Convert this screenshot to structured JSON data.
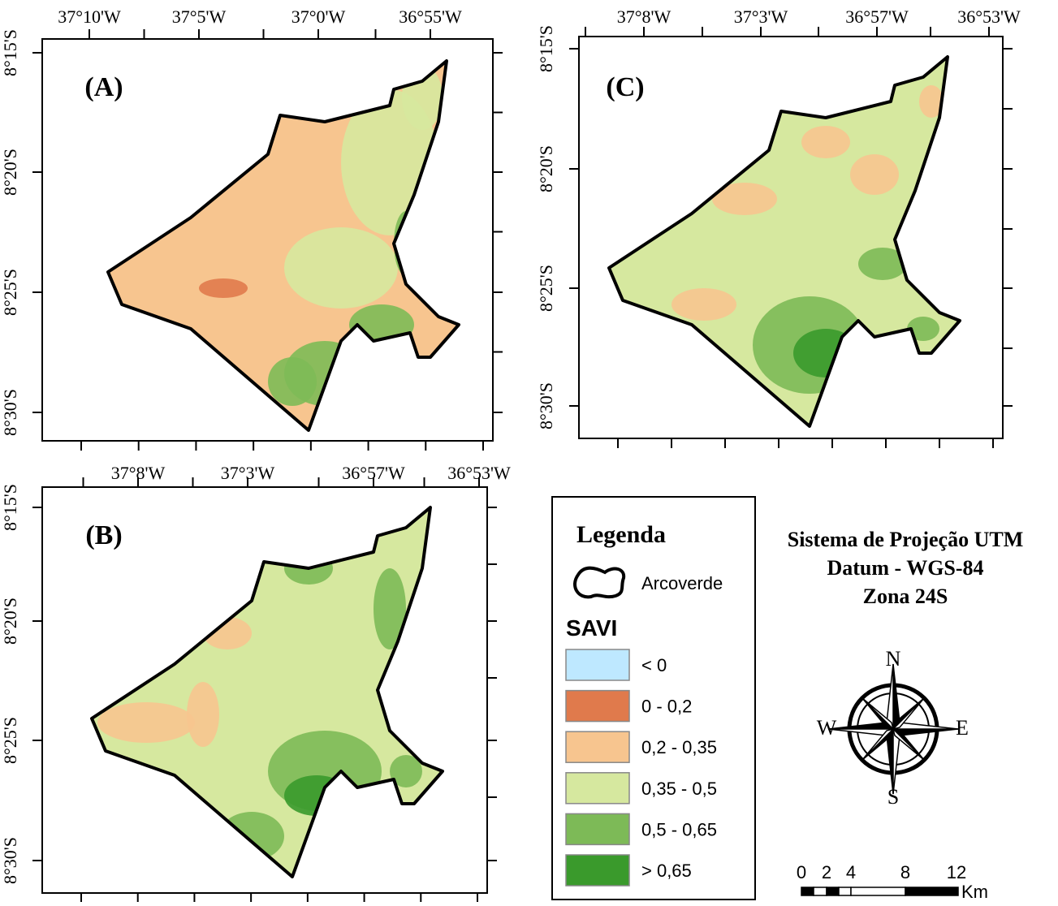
{
  "panels": [
    {
      "label": "(A)",
      "lon_labels": [
        "37°10'W",
        "37°5'W",
        "37°0'W",
        "36°55'W"
      ],
      "lat_labels": [
        "8°15'S",
        "8°20'S",
        "8°25'S",
        "8°30'S"
      ]
    },
    {
      "label": "(C)",
      "lon_labels": [
        "37°8'W",
        "37°3'W",
        "36°57'W",
        "36°53'W"
      ],
      "lat_labels": [
        "8°15'S",
        "8°20'S",
        "8°25'S",
        "8°30'S"
      ]
    },
    {
      "label": "(B)",
      "lon_labels": [
        "37°8'W",
        "37°3'W",
        "36°57'W",
        "36°53'W"
      ],
      "lat_labels": [
        "8°15'S",
        "8°20'S",
        "8°25'S",
        "8°30'S"
      ]
    }
  ],
  "legend": {
    "title": "Legenda",
    "boundary": "Arcoverde",
    "variable": "SAVI",
    "classes": [
      {
        "label": "< 0",
        "color": "#bee8ff"
      },
      {
        "label": "0 - 0,2",
        "color": "#e07a4c"
      },
      {
        "label": "0,2 - 0,35",
        "color": "#f7c58f"
      },
      {
        "label": "0,35 - 0,5",
        "color": "#d6e89f"
      },
      {
        "label": "0,5 - 0,65",
        "color": "#7dba57"
      },
      {
        "label": "> 0,65",
        "color": "#3a9a2c"
      }
    ]
  },
  "projection": [
    "Sistema de Projeção UTM",
    "Datum - WGS-84",
    "Zona 24S"
  ],
  "compass": {
    "n": "N",
    "s": "S",
    "e": "E",
    "w": "W"
  },
  "scale": {
    "labels": [
      "0",
      "2",
      "4",
      "8",
      "12"
    ],
    "unit": "Km"
  }
}
